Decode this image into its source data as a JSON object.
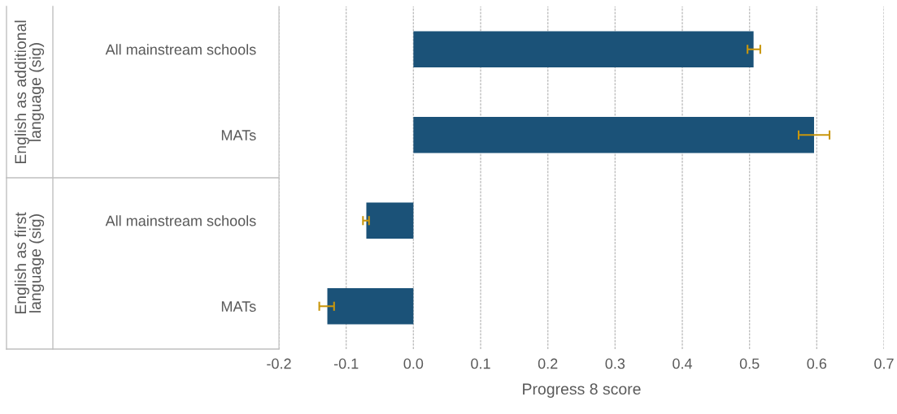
{
  "chart_data": {
    "type": "bar",
    "orientation": "horizontal",
    "xlabel": "Progress 8 score",
    "categories": [
      "All mainstream schools",
      "MATs",
      "All mainstream schools",
      "MATs"
    ],
    "annotations": [
      "English as additional language (sig)",
      "English as first language (sig)"
    ],
    "values": [
      0.506,
      0.596,
      -0.07,
      -0.128
    ],
    "errors": [
      [
        0.497,
        0.516
      ],
      [
        0.573,
        0.619
      ],
      [
        -0.075,
        -0.066
      ],
      [
        -0.14,
        -0.118
      ]
    ],
    "color": "#1b5278",
    "xlim": [
      -0.2,
      0.7
    ],
    "xticks": [
      -0.2,
      -0.1,
      {
        "value": 0,
        "label": "0.0"
      },
      0.1,
      0.2,
      0.3,
      0.4,
      0.5,
      0.6,
      0.7
    ],
    "grid": "x"
  }
}
